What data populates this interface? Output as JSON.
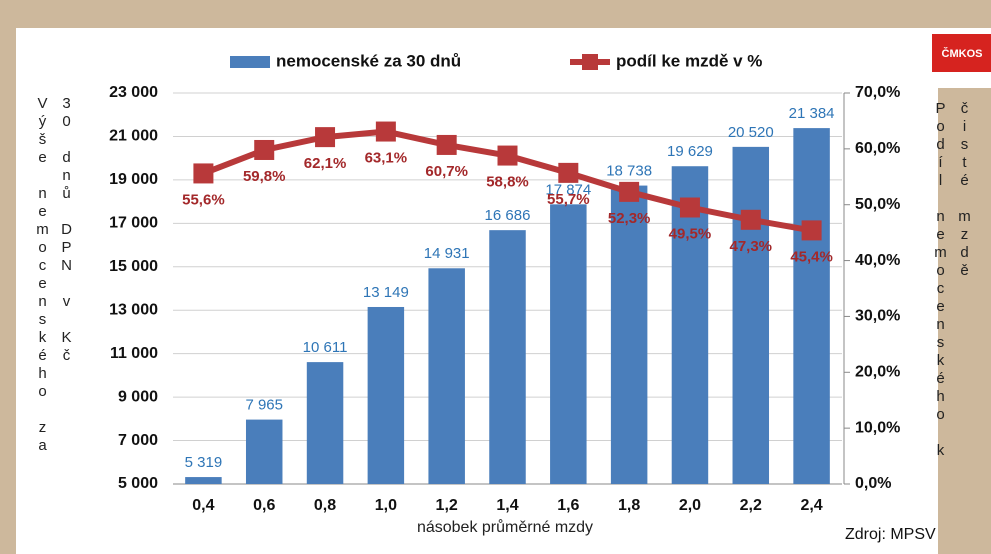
{
  "chart_data": {
    "type": "bar-line",
    "title": null,
    "x_label": "násobek průměrné mzdy",
    "y_label": "Výše nemocenského za 30 dnů DPN v Kč",
    "y2_label": "Podíl nemocenského k čisté mzdě",
    "source": "Zdroj: MPSV",
    "logo": "ČMKOS",
    "categories": [
      "0,4",
      "0,6",
      "0,8",
      "1,0",
      "1,2",
      "1,4",
      "1,6",
      "1,8",
      "2,0",
      "2,2",
      "2,4"
    ],
    "series": [
      {
        "name": "nemocenské za 30 dnů",
        "type": "bar",
        "color": "#4a7ebb",
        "values": [
          5319,
          7965,
          10611,
          13149,
          14931,
          16686,
          17874,
          18738,
          19629,
          20520,
          21384
        ],
        "value_labels": [
          "5 319",
          "7 965",
          "10 611",
          "13 149",
          "14 931",
          "16 686",
          "17 874",
          "18 738",
          "19 629",
          "20 520",
          "21 384"
        ]
      },
      {
        "name": "podíl ke mzdě v %",
        "type": "line",
        "axis": "y2",
        "color": "#b8393a",
        "values": [
          55.6,
          59.8,
          62.1,
          63.1,
          60.7,
          58.8,
          55.7,
          52.3,
          49.5,
          47.3,
          45.4
        ],
        "value_labels": [
          "55,6%",
          "59,8%",
          "62,1%",
          "63,1%",
          "60,7%",
          "58,8%",
          "55,7%",
          "52,3%",
          "49,5%",
          "47,3%",
          "45,4%"
        ]
      }
    ],
    "ylim": [
      5000,
      23000
    ],
    "yticks": [
      {
        "value": 5000,
        "label": "5 000"
      },
      {
        "value": 7000,
        "label": "7 000"
      },
      {
        "value": 9000,
        "label": "9 000"
      },
      {
        "value": 11000,
        "label": "11 000"
      },
      {
        "value": 13000,
        "label": "13 000"
      },
      {
        "value": 15000,
        "label": "15 000"
      },
      {
        "value": 17000,
        "label": "17 000"
      },
      {
        "value": 19000,
        "label": "19 000"
      },
      {
        "value": 21000,
        "label": "21 000"
      },
      {
        "value": 23000,
        "label": "23 000"
      }
    ],
    "y2lim": [
      0,
      70
    ],
    "y2ticks": [
      {
        "value": 0,
        "label": "0,0%"
      },
      {
        "value": 10,
        "label": "10,0%"
      },
      {
        "value": 20,
        "label": "20,0%"
      },
      {
        "value": 30,
        "label": "30,0%"
      },
      {
        "value": 40,
        "label": "40,0%"
      },
      {
        "value": 50,
        "label": "50,0%"
      },
      {
        "value": 60,
        "label": "60,0%"
      },
      {
        "value": 70,
        "label": "70,0%"
      }
    ],
    "grid": true,
    "legend": "top"
  }
}
